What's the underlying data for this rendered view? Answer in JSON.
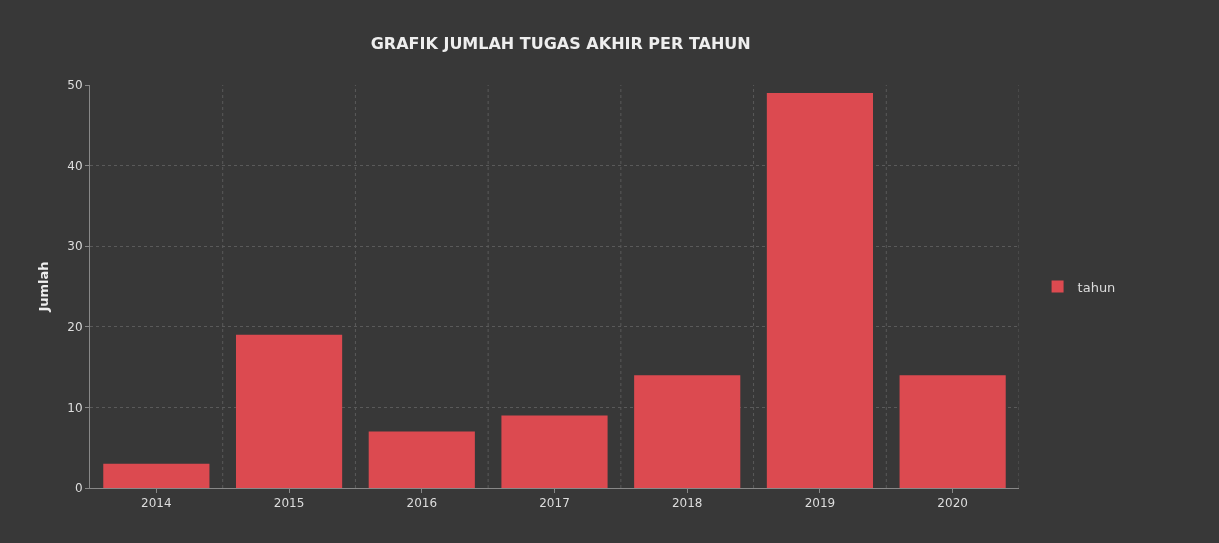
{
  "chart_data": {
    "type": "bar",
    "title": "GRAFIK JUMLAH TUGAS AKHIR PER TAHUN",
    "ylabel": "Jumlah",
    "categories": [
      "2014",
      "2015",
      "2016",
      "2017",
      "2018",
      "2019",
      "2020"
    ],
    "series": [
      {
        "name": "tahun",
        "color": "#dc4a50",
        "values": [
          3,
          19,
          7,
          9,
          14,
          49,
          14
        ]
      }
    ],
    "ylim": [
      0,
      50
    ],
    "yticks": [
      0,
      10,
      20,
      30,
      40,
      50
    ],
    "grid": true,
    "legend": "right"
  }
}
